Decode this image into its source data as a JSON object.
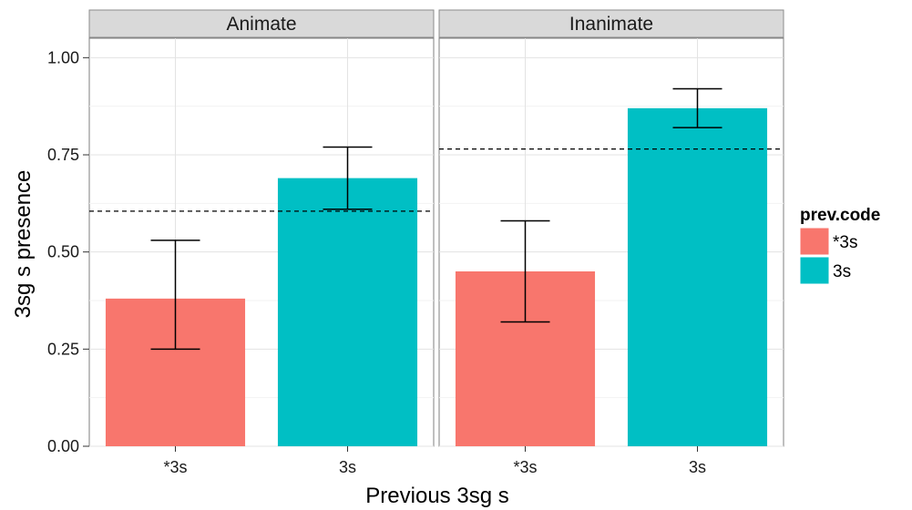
{
  "chart_data": {
    "type": "bar",
    "ylabel": "3sg s presence",
    "xlabel": "Previous 3sg s",
    "ylim": [
      0,
      1.05
    ],
    "yticks": [
      "0.00",
      "0.25",
      "0.50",
      "0.75",
      "1.00"
    ],
    "ytick_values": [
      0,
      0.25,
      0.5,
      0.75,
      1.0
    ],
    "grid": true,
    "categories": [
      "*3s",
      "3s"
    ],
    "colors": {
      "*3s": "#F8766D",
      "3s": "#00BFC4"
    },
    "legend": {
      "title": "prev.code",
      "position": "right",
      "entries": [
        {
          "label": "*3s",
          "color": "#F8766D"
        },
        {
          "label": "3s",
          "color": "#00BFC4"
        }
      ]
    },
    "panels": [
      {
        "title": "Animate",
        "bars": [
          {
            "category": "*3s",
            "value": 0.38,
            "err_low": 0.25,
            "err_high": 0.53
          },
          {
            "category": "3s",
            "value": 0.69,
            "err_low": 0.61,
            "err_high": 0.77
          }
        ],
        "reference_line": 0.605
      },
      {
        "title": "Inanimate",
        "bars": [
          {
            "category": "*3s",
            "value": 0.45,
            "err_low": 0.32,
            "err_high": 0.58
          },
          {
            "category": "3s",
            "value": 0.87,
            "err_low": 0.82,
            "err_high": 0.92
          }
        ],
        "reference_line": 0.765
      }
    ]
  }
}
